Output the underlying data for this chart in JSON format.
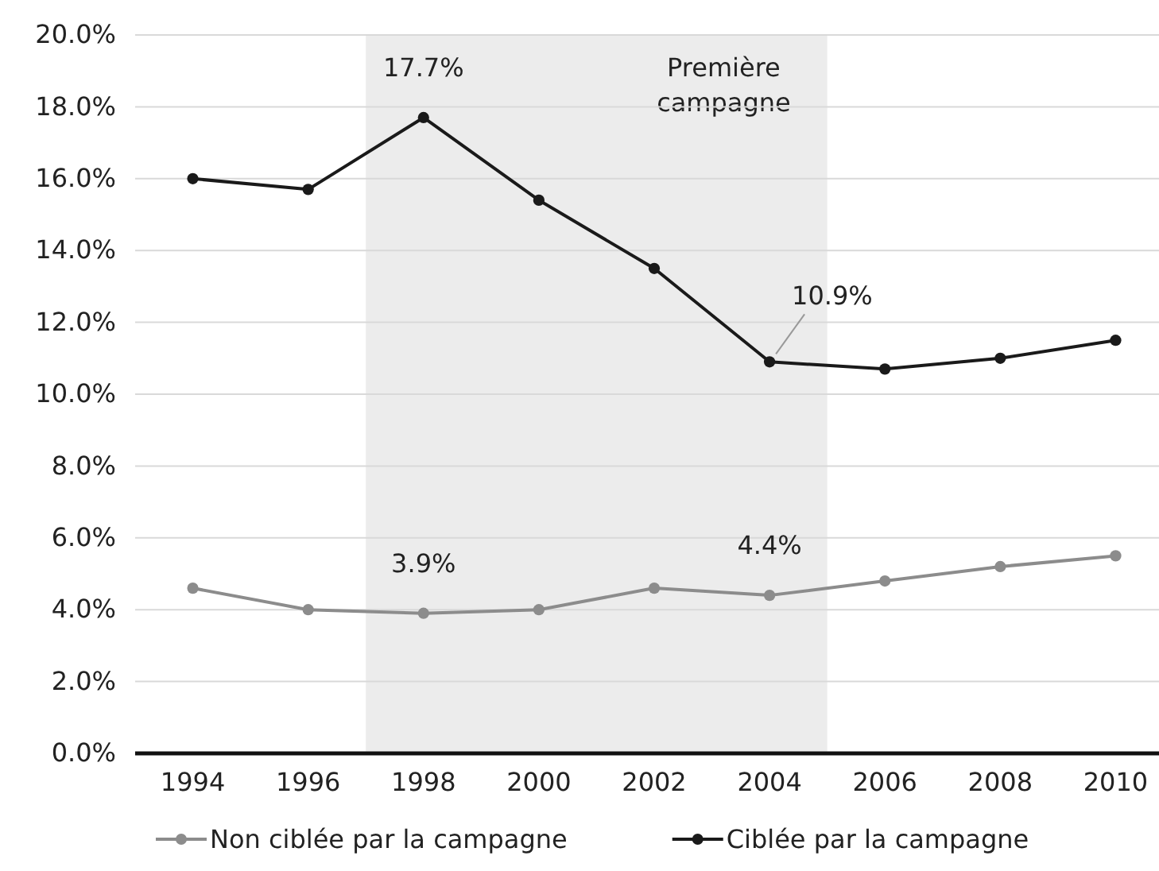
{
  "chart_data": {
    "type": "line",
    "x": [
      1994,
      1996,
      1998,
      2000,
      2002,
      2004,
      2006,
      2008,
      2010
    ],
    "xlim": [
      1993,
      2011
    ],
    "xticks": [
      1994,
      1996,
      1998,
      2000,
      2002,
      2004,
      2006,
      2008,
      2010
    ],
    "ylim": [
      0,
      20
    ],
    "yticks": [
      {
        "value": 0,
        "label": "0.0%"
      },
      {
        "value": 2,
        "label": "2.0%"
      },
      {
        "value": 4,
        "label": "4.0%"
      },
      {
        "value": 6,
        "label": "6.0%"
      },
      {
        "value": 8,
        "label": "8.0%"
      },
      {
        "value": 10,
        "label": "10.0%"
      },
      {
        "value": 12,
        "label": "12.0%"
      },
      {
        "value": 14,
        "label": "14.0%"
      },
      {
        "value": 16,
        "label": "16.0%"
      },
      {
        "value": 18,
        "label": "18.0%"
      },
      {
        "value": 20,
        "label": "20.0%"
      }
    ],
    "grid": "y",
    "legend": "bottom",
    "marker": "circle",
    "line_style": "solid",
    "bands": [
      {
        "axis": "x",
        "from": 1997,
        "to": 2005,
        "label": "Première campagne",
        "color": "#ececec"
      }
    ],
    "series": [
      {
        "name": "Non ciblée par la campagne",
        "color": "#8c8c8c",
        "values": [
          4.6,
          4.0,
          3.9,
          4.0,
          4.6,
          4.4,
          4.8,
          5.2,
          5.5
        ],
        "value_labels": [
          null,
          null,
          "3.9%",
          null,
          null,
          "4.4%",
          null,
          null,
          null
        ]
      },
      {
        "name": "Ciblée par la campagne",
        "color": "#1a1a1a",
        "values": [
          16.0,
          15.7,
          17.7,
          15.4,
          13.5,
          10.9,
          10.7,
          11.0,
          11.5
        ],
        "value_labels": [
          null,
          null,
          "17.7%",
          null,
          null,
          "10.9%",
          null,
          null,
          null
        ]
      }
    ]
  }
}
